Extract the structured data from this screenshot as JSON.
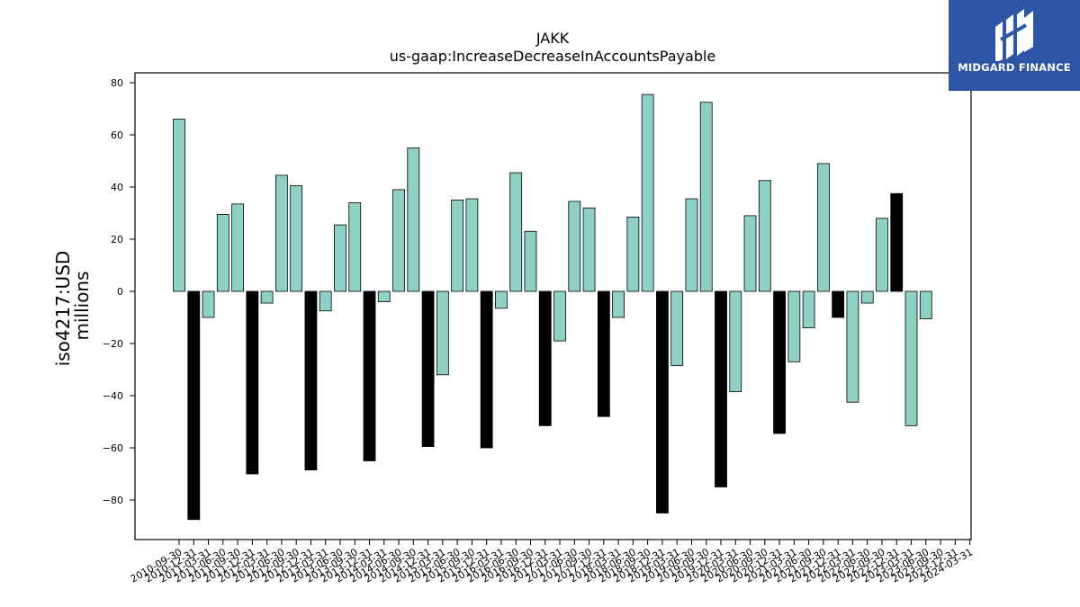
{
  "chart_data": {
    "type": "bar",
    "title": "JAKK",
    "subtitle": "us-gaap:IncreaseDecreaseInAccountsPayable",
    "ylabel": "iso4217:USD",
    "ylabel2": "millions",
    "xlabel": "",
    "ylim": [
      -95,
      84
    ],
    "yticks": [
      -80,
      -60,
      -40,
      -20,
      0,
      20,
      40,
      60,
      80
    ],
    "grid": false,
    "legend": "none",
    "categories": [
      "2010-09-30",
      "2010-12-31",
      "2011-03-31",
      "2011-06-30",
      "2011-09-30",
      "2011-12-31",
      "2012-03-31",
      "2012-06-30",
      "2012-09-30",
      "2012-12-31",
      "2013-03-31",
      "2013-06-30",
      "2013-09-30",
      "2013-12-31",
      "2014-03-31",
      "2014-06-30",
      "2014-09-30",
      "2014-12-31",
      "2015-03-31",
      "2015-06-30",
      "2015-09-30",
      "2015-12-31",
      "2016-03-31",
      "2016-06-30",
      "2016-09-30",
      "2016-12-31",
      "2017-03-31",
      "2017-06-30",
      "2017-09-30",
      "2017-12-31",
      "2018-03-31",
      "2018-06-30",
      "2018-09-30",
      "2018-12-31",
      "2019-03-31",
      "2019-06-30",
      "2019-09-30",
      "2019-12-31",
      "2020-03-31",
      "2020-06-30",
      "2020-09-30",
      "2020-12-31",
      "2021-03-31",
      "2021-06-30",
      "2021-09-30",
      "2021-12-31",
      "2022-03-31",
      "2022-06-30",
      "2022-09-30",
      "2022-12-31",
      "2023-03-31",
      "2023-06-30",
      "2023-09-30",
      "2023-12-31",
      "2024-03-31"
    ],
    "values": [
      66,
      -87.5,
      -10,
      29.5,
      33.5,
      -70,
      -4.5,
      44.5,
      40.5,
      -68.5,
      -7.5,
      25.5,
      34,
      -65,
      -4,
      39,
      55,
      -59.5,
      -32,
      35,
      35.5,
      -60,
      -6.5,
      45.5,
      23,
      -51.5,
      -19,
      34.5,
      32,
      -48,
      -10,
      28.5,
      75.5,
      -85,
      -28.5,
      35.5,
      72.5,
      -75,
      -38.5,
      29,
      42.5,
      -54.5,
      -27,
      -14,
      49,
      -10,
      -42.5,
      -4.5,
      28,
      37.5,
      -51.5,
      -10.5,
      null,
      null,
      null
    ],
    "colors": {
      "positive": "#8ed0c3",
      "year_end": "#000000"
    }
  },
  "logo": {
    "text": "MIDGARD FINANCE",
    "bg_color": "#2e56a6",
    "icon": "midgard-logo-icon"
  }
}
